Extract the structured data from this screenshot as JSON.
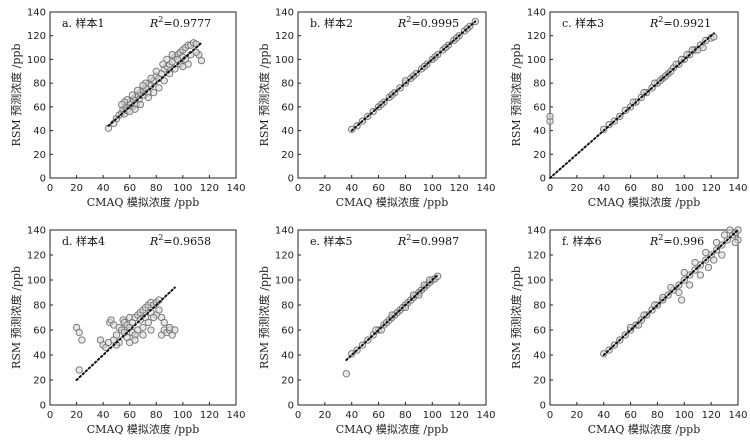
{
  "figure": {
    "x_axis_label": "CMAQ 模拟浓度 /ppb",
    "y_axis_label": "RSM 预测浓度 /ppb"
  },
  "chart_data": [
    {
      "type": "scatter",
      "panel": "a",
      "title": "a. 样本1",
      "r2_label": "R",
      "r2_value": "=0.9777",
      "xlabel": "CMAQ 模拟浓度 /ppb",
      "ylabel": "RSM 预测浓度 /ppb",
      "xlim": [
        0,
        140
      ],
      "ylim": [
        0,
        140
      ],
      "xticks": [
        0,
        20,
        40,
        60,
        80,
        100,
        120,
        140
      ],
      "yticks": [
        0,
        20,
        40,
        60,
        80,
        100,
        120,
        140
      ],
      "fit_line": [
        [
          44,
          44
        ],
        [
          114,
          114
        ]
      ],
      "points": [
        [
          44,
          42
        ],
        [
          48,
          46
        ],
        [
          50,
          50
        ],
        [
          52,
          53
        ],
        [
          54,
          55
        ],
        [
          55,
          58
        ],
        [
          56,
          54
        ],
        [
          57,
          60
        ],
        [
          58,
          57
        ],
        [
          60,
          62
        ],
        [
          60,
          64
        ],
        [
          62,
          60
        ],
        [
          63,
          66
        ],
        [
          64,
          68
        ],
        [
          65,
          62
        ],
        [
          66,
          70
        ],
        [
          67,
          66
        ],
        [
          68,
          72
        ],
        [
          70,
          74
        ],
        [
          71,
          70
        ],
        [
          72,
          76
        ],
        [
          74,
          72
        ],
        [
          75,
          80
        ],
        [
          76,
          78
        ],
        [
          78,
          82
        ],
        [
          80,
          86
        ],
        [
          82,
          84
        ],
        [
          84,
          88
        ],
        [
          86,
          92
        ],
        [
          88,
          94
        ],
        [
          90,
          96
        ],
        [
          92,
          98
        ],
        [
          94,
          102
        ],
        [
          96,
          104
        ],
        [
          98,
          106
        ],
        [
          100,
          108
        ],
        [
          102,
          110
        ],
        [
          104,
          112
        ],
        [
          106,
          112
        ],
        [
          108,
          114
        ],
        [
          110,
          113
        ],
        [
          112,
          104
        ],
        [
          114,
          99
        ],
        [
          100,
          102
        ],
        [
          96,
          100
        ],
        [
          92,
          104
        ],
        [
          88,
          100
        ],
        [
          85,
          96
        ],
        [
          80,
          90
        ],
        [
          76,
          84
        ],
        [
          72,
          80
        ],
        [
          70,
          78
        ],
        [
          66,
          74
        ],
        [
          62,
          70
        ],
        [
          58,
          66
        ],
        [
          56,
          64
        ],
        [
          54,
          62
        ],
        [
          60,
          56
        ],
        [
          64,
          58
        ],
        [
          68,
          62
        ],
        [
          74,
          68
        ],
        [
          78,
          72
        ],
        [
          82,
          76
        ],
        [
          86,
          82
        ],
        [
          90,
          88
        ],
        [
          94,
          92
        ],
        [
          98,
          96
        ],
        [
          102,
          100
        ],
        [
          106,
          104
        ],
        [
          110,
          106
        ],
        [
          104,
          96
        ],
        [
          100,
          94
        ]
      ]
    },
    {
      "type": "scatter",
      "panel": "b",
      "title": "b. 样本2",
      "r2_label": "R",
      "r2_value": "=0.9995",
      "xlabel": "CMAQ 模拟浓度 /ppb",
      "ylabel": "RSM 预测浓度 /ppb",
      "xlim": [
        0,
        140
      ],
      "ylim": [
        0,
        140
      ],
      "xticks": [
        0,
        20,
        40,
        60,
        80,
        100,
        120,
        140
      ],
      "yticks": [
        0,
        20,
        40,
        60,
        80,
        100,
        120,
        140
      ],
      "fit_line": [
        [
          40,
          40
        ],
        [
          132,
          132
        ]
      ],
      "points": [
        [
          40,
          41
        ],
        [
          44,
          44
        ],
        [
          48,
          48
        ],
        [
          52,
          52
        ],
        [
          56,
          56
        ],
        [
          60,
          60
        ],
        [
          64,
          64
        ],
        [
          68,
          68
        ],
        [
          72,
          72
        ],
        [
          76,
          76
        ],
        [
          80,
          80
        ],
        [
          80,
          82
        ],
        [
          84,
          84
        ],
        [
          88,
          88
        ],
        [
          92,
          92
        ],
        [
          96,
          96
        ],
        [
          100,
          100
        ],
        [
          104,
          104
        ],
        [
          108,
          108
        ],
        [
          112,
          112
        ],
        [
          116,
          116
        ],
        [
          120,
          120
        ],
        [
          124,
          124
        ],
        [
          128,
          128
        ],
        [
          132,
          132
        ],
        [
          62,
          62
        ],
        [
          70,
          70
        ],
        [
          86,
          86
        ],
        [
          94,
          94
        ],
        [
          102,
          102
        ],
        [
          110,
          110
        ],
        [
          118,
          118
        ],
        [
          126,
          126
        ]
      ]
    },
    {
      "type": "scatter",
      "panel": "c",
      "title": "c. 样本3",
      "r2_label": "R",
      "r2_value": "=0.9921",
      "xlabel": "CMAQ 模拟浓度 /ppb",
      "ylabel": "RSM 预测浓度 /ppb",
      "xlim": [
        0,
        140
      ],
      "ylim": [
        0,
        140
      ],
      "xticks": [
        0,
        20,
        40,
        60,
        80,
        100,
        120,
        140
      ],
      "yticks": [
        0,
        20,
        40,
        60,
        80,
        100,
        120,
        140
      ],
      "fit_line": [
        [
          0,
          0
        ],
        [
          122,
          122
        ]
      ],
      "points": [
        [
          0,
          48
        ],
        [
          0,
          52
        ],
        [
          40,
          41
        ],
        [
          44,
          45
        ],
        [
          48,
          48
        ],
        [
          52,
          52
        ],
        [
          56,
          57
        ],
        [
          60,
          60
        ],
        [
          64,
          64
        ],
        [
          68,
          68
        ],
        [
          72,
          72
        ],
        [
          76,
          76
        ],
        [
          80,
          80
        ],
        [
          84,
          84
        ],
        [
          88,
          88
        ],
        [
          92,
          93
        ],
        [
          96,
          96
        ],
        [
          100,
          100
        ],
        [
          104,
          104
        ],
        [
          108,
          108
        ],
        [
          112,
          112
        ],
        [
          116,
          116
        ],
        [
          120,
          118
        ],
        [
          122,
          119
        ],
        [
          62,
          64
        ],
        [
          70,
          72
        ],
        [
          78,
          80
        ],
        [
          86,
          86
        ],
        [
          94,
          96
        ],
        [
          102,
          104
        ],
        [
          110,
          108
        ],
        [
          114,
          110
        ],
        [
          106,
          108
        ],
        [
          98,
          100
        ],
        [
          90,
          90
        ],
        [
          82,
          82
        ]
      ]
    },
    {
      "type": "scatter",
      "panel": "d",
      "title": "d. 样本4",
      "r2_label": "R",
      "r2_value": "=0.9658",
      "xlabel": "CMAQ 模拟浓度 /ppb",
      "ylabel": "RSM 预测浓度 /ppb",
      "xlim": [
        0,
        140
      ],
      "ylim": [
        0,
        140
      ],
      "xticks": [
        0,
        20,
        40,
        60,
        80,
        100,
        120,
        140
      ],
      "yticks": [
        0,
        20,
        40,
        60,
        80,
        100,
        120,
        140
      ],
      "fit_line": [
        [
          20,
          20
        ],
        [
          94,
          94
        ]
      ],
      "points": [
        [
          20,
          62
        ],
        [
          22,
          58
        ],
        [
          22,
          28
        ],
        [
          24,
          52
        ],
        [
          38,
          52
        ],
        [
          40,
          48
        ],
        [
          42,
          46
        ],
        [
          44,
          50
        ],
        [
          45,
          66
        ],
        [
          46,
          68
        ],
        [
          48,
          64
        ],
        [
          48,
          52
        ],
        [
          50,
          56
        ],
        [
          52,
          62
        ],
        [
          54,
          60
        ],
        [
          55,
          68
        ],
        [
          56,
          66
        ],
        [
          58,
          64
        ],
        [
          60,
          62
        ],
        [
          60,
          70
        ],
        [
          62,
          58
        ],
        [
          62,
          66
        ],
        [
          64,
          70
        ],
        [
          66,
          72
        ],
        [
          68,
          68
        ],
        [
          68,
          74
        ],
        [
          70,
          76
        ],
        [
          72,
          70
        ],
        [
          72,
          78
        ],
        [
          74,
          80
        ],
        [
          76,
          74
        ],
        [
          76,
          82
        ],
        [
          78,
          80
        ],
        [
          80,
          82
        ],
        [
          80,
          72
        ],
        [
          82,
          84
        ],
        [
          84,
          70
        ],
        [
          84,
          56
        ],
        [
          86,
          60
        ],
        [
          88,
          58
        ],
        [
          90,
          60
        ],
        [
          92,
          56
        ],
        [
          94,
          60
        ],
        [
          74,
          66
        ],
        [
          70,
          62
        ],
        [
          66,
          60
        ],
        [
          64,
          56
        ],
        [
          58,
          54
        ],
        [
          56,
          58
        ],
        [
          52,
          50
        ],
        [
          50,
          48
        ],
        [
          82,
          76
        ],
        [
          78,
          70
        ],
        [
          86,
          66
        ],
        [
          90,
          62
        ],
        [
          60,
          50
        ],
        [
          64,
          52
        ],
        [
          70,
          56
        ],
        [
          76,
          60
        ]
      ]
    },
    {
      "type": "scatter",
      "panel": "e",
      "title": "e. 样本5",
      "r2_label": "R",
      "r2_value": "=0.9987",
      "xlabel": "CMAQ 模拟浓度 /ppb",
      "ylabel": "RSM 预测浓度 /ppb",
      "xlim": [
        0,
        140
      ],
      "ylim": [
        0,
        140
      ],
      "xticks": [
        0,
        20,
        40,
        60,
        80,
        100,
        120,
        140
      ],
      "yticks": [
        0,
        20,
        40,
        60,
        80,
        100,
        120,
        140
      ],
      "fit_line": [
        [
          36,
          36
        ],
        [
          104,
          104
        ]
      ],
      "points": [
        [
          36,
          25
        ],
        [
          40,
          41
        ],
        [
          44,
          44
        ],
        [
          48,
          48
        ],
        [
          52,
          52
        ],
        [
          56,
          56
        ],
        [
          60,
          60
        ],
        [
          64,
          64
        ],
        [
          66,
          66
        ],
        [
          68,
          68
        ],
        [
          70,
          70
        ],
        [
          72,
          72
        ],
        [
          74,
          74
        ],
        [
          76,
          76
        ],
        [
          78,
          78
        ],
        [
          80,
          80
        ],
        [
          82,
          82
        ],
        [
          84,
          84
        ],
        [
          86,
          86
        ],
        [
          88,
          88
        ],
        [
          90,
          90
        ],
        [
          92,
          92
        ],
        [
          94,
          94
        ],
        [
          96,
          96
        ],
        [
          98,
          98
        ],
        [
          100,
          100
        ],
        [
          102,
          101
        ],
        [
          104,
          103
        ],
        [
          62,
          60
        ],
        [
          58,
          60
        ],
        [
          70,
          72
        ],
        [
          80,
          78
        ],
        [
          86,
          88
        ],
        [
          90,
          88
        ],
        [
          94,
          96
        ],
        [
          98,
          100
        ]
      ]
    },
    {
      "type": "scatter",
      "panel": "f",
      "title": "f. 样本6",
      "r2_label": "R",
      "r2_value": "=0.996",
      "xlabel": "CMAQ 模拟浓度 /ppb",
      "ylabel": "RSM 预测浓度 /ppb",
      "xlim": [
        0,
        140
      ],
      "ylim": [
        0,
        140
      ],
      "xticks": [
        0,
        20,
        40,
        60,
        80,
        100,
        120,
        140
      ],
      "yticks": [
        0,
        20,
        40,
        60,
        80,
        100,
        120,
        140
      ],
      "fit_line": [
        [
          40,
          40
        ],
        [
          140,
          140
        ]
      ],
      "points": [
        [
          40,
          41
        ],
        [
          44,
          44
        ],
        [
          48,
          48
        ],
        [
          52,
          52
        ],
        [
          56,
          56
        ],
        [
          60,
          60
        ],
        [
          64,
          64
        ],
        [
          68,
          68
        ],
        [
          72,
          72
        ],
        [
          76,
          76
        ],
        [
          80,
          80
        ],
        [
          84,
          84
        ],
        [
          88,
          88
        ],
        [
          92,
          92
        ],
        [
          96,
          96
        ],
        [
          100,
          100
        ],
        [
          104,
          104
        ],
        [
          108,
          108
        ],
        [
          112,
          112
        ],
        [
          116,
          116
        ],
        [
          120,
          120
        ],
        [
          124,
          124
        ],
        [
          128,
          128
        ],
        [
          132,
          132
        ],
        [
          136,
          136
        ],
        [
          138,
          138
        ],
        [
          140,
          140
        ],
        [
          140,
          132
        ],
        [
          138,
          130
        ],
        [
          96,
          90
        ],
        [
          98,
          84
        ],
        [
          104,
          96
        ],
        [
          112,
          104
        ],
        [
          118,
          110
        ],
        [
          122,
          116
        ],
        [
          128,
          120
        ],
        [
          60,
          62
        ],
        [
          66,
          64
        ],
        [
          70,
          72
        ],
        [
          78,
          80
        ],
        [
          84,
          86
        ],
        [
          90,
          94
        ],
        [
          100,
          106
        ],
        [
          108,
          114
        ],
        [
          116,
          122
        ],
        [
          124,
          130
        ],
        [
          130,
          136
        ],
        [
          134,
          140
        ]
      ]
    }
  ]
}
